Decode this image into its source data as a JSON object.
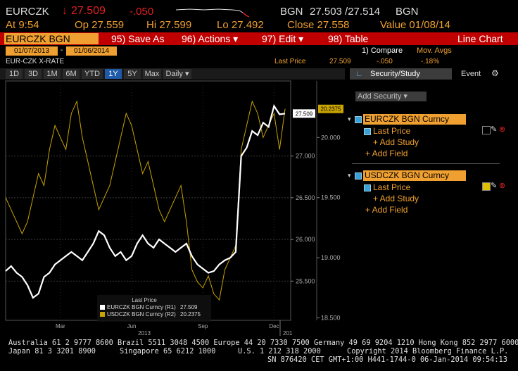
{
  "header": {
    "ticker": "EURCZK",
    "last": "27.509",
    "change": "-.050",
    "source1": "BGN",
    "bid_ask": "27.503 /27.514",
    "source2": "BGN"
  },
  "quote": {
    "at": "At 9:54",
    "open": "Op 27.559",
    "high": "Hi 27.599",
    "low": "Lo 27.492",
    "close": "Close 27.558",
    "value": "Value 01/08/14"
  },
  "menu": {
    "security": "EURCZK BGN Curncy",
    "save": "95) Save As",
    "actions": "96) Actions ▾",
    "edit": "97) Edit ▾",
    "table": "98) Table",
    "chart_type": "Line Chart"
  },
  "range": {
    "start": "01/07/2013",
    "sep": "-",
    "end": "01/06/2014",
    "compare": "1) Compare",
    "mov_avgs": "Mov. Avgs"
  },
  "info": {
    "name": "EUR-CZK X-RATE",
    "field": "Last Price",
    "last": "27.509",
    "change": "-.050",
    "pct": "-.18%"
  },
  "periods": [
    "1D",
    "3D",
    "1M",
    "6M",
    "YTD",
    "1Y",
    "5Y",
    "Max",
    "Daily ▾"
  ],
  "panel": {
    "tab1": "Security/Study",
    "tab2": "Event",
    "add_security": "Add Security",
    "items": [
      {
        "security": "EURCZK BGN Curncy",
        "field": "Last Price",
        "add_study": "+ Add Study",
        "add_field": "+ Add Field"
      },
      {
        "security": "USDCZK BGN Curncy",
        "field": "Last Price",
        "add_study": "+ Add Study",
        "add_field": "+ Add Field"
      }
    ]
  },
  "footer": {
    "line1": "Australia 61 2 9777 8600 Brazil 5511 3048 4500 Europe 44 20 7330 7500 Germany 49 69 9204 1210 Hong Kong 852 2977 6000",
    "japan": "Japan 81 3 3201 8900",
    "singapore": "Singapore 65 6212 1000",
    "us": "U.S. 1 212 318 2000",
    "copyright": "Copyright 2014 Bloomberg Finance L.P.",
    "line3": "SN 876420 CET  GMT+1:00 H441-1744-0 06-Jan-2014 09:54:13"
  },
  "chart_data": {
    "type": "line",
    "legend_title": "Last Price",
    "categories": [
      null,
      null,
      null,
      null,
      null,
      null,
      null,
      null,
      null,
      null,
      "Mar",
      null,
      null,
      null,
      null,
      null,
      null,
      null,
      null,
      null,
      null,
      null,
      null,
      "Jun",
      null,
      null,
      null,
      null,
      null,
      null,
      null,
      null,
      null,
      null,
      null,
      null,
      "Sep",
      null,
      null,
      null,
      null,
      null,
      null,
      null,
      null,
      null,
      null,
      null,
      null,
      "Dec",
      null,
      null
    ],
    "year_labels": [
      "2013",
      "201"
    ],
    "ylim": [
      25.03,
      27.9
    ],
    "yticks": [
      {
        "value": 25.5,
        "label": "25.500"
      },
      {
        "value": 26,
        "label": "26.000"
      },
      {
        "value": 26.5,
        "label": "26.500"
      },
      {
        "value": 27,
        "label": "27.000"
      }
    ],
    "y2lim": [
      18.48,
      20.47
    ],
    "y2ticks": [
      {
        "value": 18.5,
        "label": "18.500"
      },
      {
        "value": 19,
        "label": "19.000"
      },
      {
        "value": 19.5,
        "label": "19.500"
      },
      {
        "value": 20,
        "label": "20.000"
      }
    ],
    "grid": true,
    "series": [
      {
        "name": "EURCZK BGN Curncy  (R1)",
        "color": "#ffffff",
        "axis": "y",
        "values": [
          25.62,
          25.68,
          25.6,
          25.55,
          25.45,
          25.3,
          25.35,
          25.55,
          25.6,
          25.7,
          25.75,
          25.8,
          25.85,
          25.8,
          25.75,
          25.85,
          25.95,
          26.1,
          26.05,
          25.9,
          25.8,
          25.85,
          25.75,
          25.8,
          25.95,
          26.05,
          25.95,
          25.9,
          26.0,
          25.95,
          25.9,
          25.85,
          25.9,
          25.95,
          25.8,
          25.7,
          25.65,
          25.6,
          25.62,
          25.7,
          25.75,
          25.78,
          25.85,
          27.0,
          27.1,
          27.3,
          27.25,
          27.4,
          27.35,
          27.6,
          27.5,
          27.509
        ]
      },
      {
        "name": "USDCZK BGN Curncy  (R2)",
        "color": "#c9a400",
        "axis": "y2",
        "values": [
          19.5,
          19.4,
          19.3,
          19.2,
          19.3,
          19.5,
          19.7,
          19.6,
          19.9,
          20.1,
          20.0,
          19.9,
          20.2,
          20.3,
          20.0,
          19.8,
          19.6,
          19.4,
          19.5,
          19.6,
          19.8,
          20.0,
          20.2,
          20.1,
          19.9,
          19.7,
          19.8,
          19.6,
          19.4,
          19.3,
          19.4,
          19.5,
          19.6,
          19.3,
          18.9,
          18.8,
          18.75,
          18.85,
          18.7,
          18.65,
          18.9,
          19.0,
          19.1,
          19.9,
          20.1,
          20.3,
          20.2,
          20.0,
          20.1,
          20.2,
          19.9,
          20.2375
        ]
      }
    ]
  }
}
